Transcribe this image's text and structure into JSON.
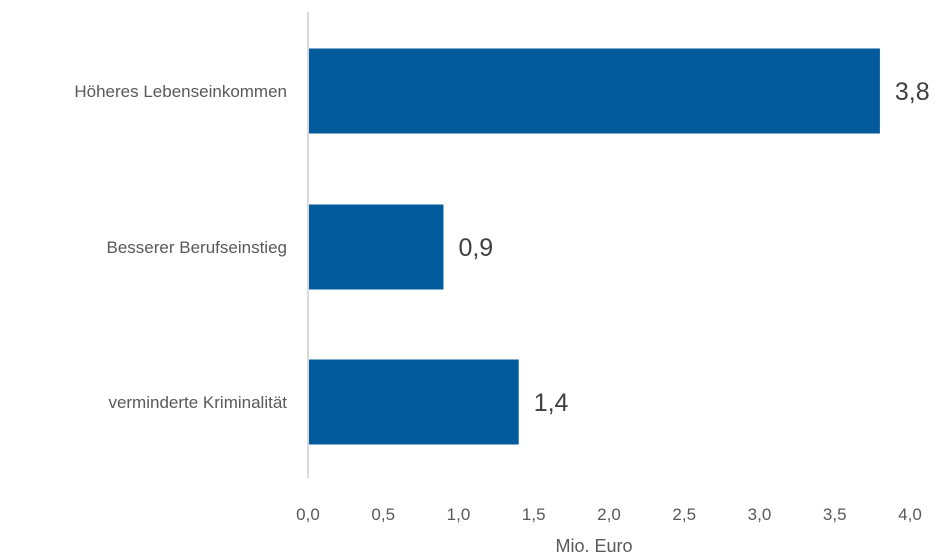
{
  "chart_data": {
    "type": "bar",
    "orientation": "horizontal",
    "categories": [
      "Höheres Lebenseinkommen",
      "Besserer Berufseinstieg",
      "verminderte Kriminalität"
    ],
    "values": [
      3.8,
      0.9,
      1.4
    ],
    "value_labels": [
      "3,8",
      "0,9",
      "1,4"
    ],
    "title": "",
    "xlabel": "Mio. Euro",
    "ylabel": "",
    "xlim": [
      0,
      4.0
    ],
    "x_ticks": [
      0,
      0.5,
      1.0,
      1.5,
      2.0,
      2.5,
      3.0,
      3.5,
      4.0
    ],
    "x_tick_labels": [
      "0,0",
      "0,5",
      "1,0",
      "1,5",
      "2,0",
      "2,5",
      "3,0",
      "3,5",
      "4,0"
    ],
    "grid": false,
    "legend": "none",
    "colors": {
      "bar": "#005A9C",
      "axis": "#D9D9D9"
    }
  }
}
